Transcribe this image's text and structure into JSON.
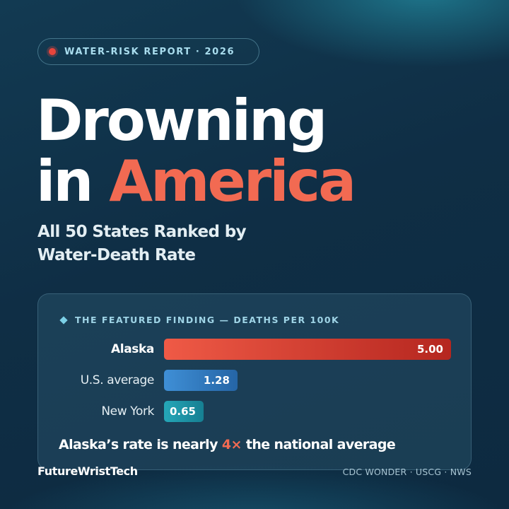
{
  "header": {
    "badge_text": "WATER-RISK REPORT · 2026",
    "title_line1": "Drowning",
    "title_in": "in",
    "title_accent": "America",
    "subtitle_line1": "All 50 States Ranked by",
    "subtitle_line2": "Water-Death Rate"
  },
  "card": {
    "label": "THE FEATURED FINDING — DEATHS PER 100K",
    "footnote_pre": "Alaska’s rate is nearly ",
    "footnote_accent": "4×",
    "footnote_post": " the national average"
  },
  "chart_data": {
    "type": "bar",
    "orientation": "horizontal",
    "title": "THE FEATURED FINDING — DEATHS PER 100K",
    "categories": [
      "Alaska",
      "U.S. average",
      "New York"
    ],
    "values": [
      5.0,
      1.28,
      0.65
    ],
    "value_labels": [
      "5.00",
      "1.28",
      "0.65"
    ],
    "xlim": [
      0,
      5.0
    ],
    "colors": [
      [
        "#ef5a46",
        "#b5261f"
      ],
      [
        "#3f8fd6",
        "#2565a6"
      ],
      [
        "#25a7b8",
        "#167f92"
      ]
    ],
    "grid": false
  },
  "footer": {
    "brand": "FutureWristTech",
    "sources": "CDC WONDER · USCG · NWS"
  },
  "colors": {
    "accent": "#f26a52",
    "background": "#0f2e45",
    "badge_dot": "#e8453c"
  }
}
